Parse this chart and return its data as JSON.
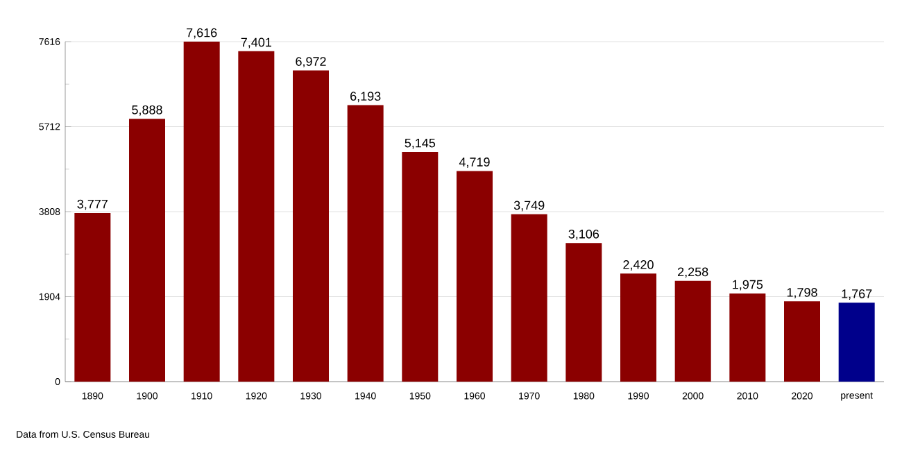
{
  "chart_data": {
    "type": "bar",
    "categories": [
      "1890",
      "1900",
      "1910",
      "1920",
      "1930",
      "1940",
      "1950",
      "1960",
      "1970",
      "1980",
      "1990",
      "2000",
      "2010",
      "2020",
      "present"
    ],
    "values": [
      3777,
      5888,
      7616,
      7401,
      6972,
      6193,
      5145,
      4719,
      3749,
      3106,
      2420,
      2258,
      1975,
      1798,
      1767
    ],
    "value_labels": [
      "3,777",
      "5,888",
      "7,616",
      "7,401",
      "6,972",
      "6,193",
      "5,145",
      "4,719",
      "3,749",
      "3,106",
      "2,420",
      "2,258",
      "1,975",
      "1,798",
      "1,767"
    ],
    "colors": [
      "#8b0000",
      "#8b0000",
      "#8b0000",
      "#8b0000",
      "#8b0000",
      "#8b0000",
      "#8b0000",
      "#8b0000",
      "#8b0000",
      "#8b0000",
      "#8b0000",
      "#8b0000",
      "#8b0000",
      "#8b0000",
      "#00008b"
    ],
    "ylim": [
      0,
      7616
    ],
    "yticks": [
      0,
      1904,
      3808,
      5712,
      7616
    ],
    "grid": "y",
    "annotations": [
      "Data from U.S. Census Bureau"
    ]
  }
}
